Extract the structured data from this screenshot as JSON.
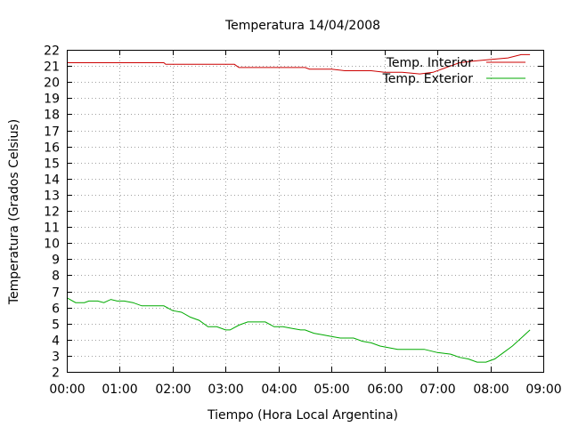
{
  "chart_data": {
    "type": "line",
    "title": "Temperatura 14/04/2008",
    "xlabel": "Tiempo (Hora Local Argentina)",
    "ylabel": "Temperatura (Grados Celsius)",
    "xlim": [
      "00:00",
      "09:00"
    ],
    "ylim": [
      2,
      22
    ],
    "grid": true,
    "legend_position": "top-right",
    "x_tick_labels": [
      "00:00",
      "01:00",
      "02:00",
      "03:00",
      "04:00",
      "05:00",
      "06:00",
      "07:00",
      "08:00",
      "09:00"
    ],
    "y_tick_labels": [
      "2",
      "3",
      "4",
      "5",
      "6",
      "7",
      "8",
      "9",
      "10",
      "11",
      "12",
      "13",
      "14",
      "15",
      "16",
      "17",
      "18",
      "19",
      "20",
      "21",
      "22"
    ],
    "series": [
      {
        "name": "Temp. Interior",
        "color": "#cc0000",
        "points": [
          [
            "00:00",
            21.2
          ],
          [
            "00:30",
            21.2
          ],
          [
            "01:00",
            21.2
          ],
          [
            "01:30",
            21.2
          ],
          [
            "01:50",
            21.2
          ],
          [
            "01:52",
            21.1
          ],
          [
            "02:30",
            21.1
          ],
          [
            "03:10",
            21.1
          ],
          [
            "03:15",
            20.9
          ],
          [
            "04:00",
            20.9
          ],
          [
            "04:30",
            20.9
          ],
          [
            "04:35",
            20.8
          ],
          [
            "05:00",
            20.8
          ],
          [
            "05:15",
            20.7
          ],
          [
            "05:45",
            20.7
          ],
          [
            "06:00",
            20.6
          ],
          [
            "06:20",
            20.6
          ],
          [
            "06:40",
            20.5
          ],
          [
            "06:55",
            20.6
          ],
          [
            "07:10",
            20.9
          ],
          [
            "07:25",
            21.2
          ],
          [
            "07:40",
            21.3
          ],
          [
            "08:00",
            21.4
          ],
          [
            "08:20",
            21.5
          ],
          [
            "08:35",
            21.7
          ],
          [
            "08:45",
            21.7
          ]
        ]
      },
      {
        "name": "Temp. Exterior",
        "color": "#00aa00",
        "points": [
          [
            "00:00",
            6.6
          ],
          [
            "00:10",
            6.3
          ],
          [
            "00:20",
            6.3
          ],
          [
            "00:25",
            6.4
          ],
          [
            "00:35",
            6.4
          ],
          [
            "00:42",
            6.3
          ],
          [
            "00:50",
            6.5
          ],
          [
            "00:57",
            6.4
          ],
          [
            "01:05",
            6.4
          ],
          [
            "01:15",
            6.3
          ],
          [
            "01:25",
            6.1
          ],
          [
            "01:50",
            6.1
          ],
          [
            "02:00",
            5.8
          ],
          [
            "02:10",
            5.7
          ],
          [
            "02:20",
            5.4
          ],
          [
            "02:30",
            5.2
          ],
          [
            "02:40",
            4.8
          ],
          [
            "02:50",
            4.8
          ],
          [
            "03:00",
            4.6
          ],
          [
            "03:05",
            4.6
          ],
          [
            "03:15",
            4.9
          ],
          [
            "03:25",
            5.1
          ],
          [
            "03:45",
            5.1
          ],
          [
            "03:55",
            4.8
          ],
          [
            "04:05",
            4.8
          ],
          [
            "04:15",
            4.7
          ],
          [
            "04:25",
            4.6
          ],
          [
            "04:30",
            4.6
          ],
          [
            "04:40",
            4.4
          ],
          [
            "04:50",
            4.3
          ],
          [
            "05:00",
            4.2
          ],
          [
            "05:10",
            4.1
          ],
          [
            "05:25",
            4.1
          ],
          [
            "05:35",
            3.9
          ],
          [
            "05:45",
            3.8
          ],
          [
            "05:55",
            3.6
          ],
          [
            "06:05",
            3.5
          ],
          [
            "06:15",
            3.4
          ],
          [
            "06:25",
            3.4
          ],
          [
            "06:45",
            3.4
          ],
          [
            "07:00",
            3.2
          ],
          [
            "07:15",
            3.1
          ],
          [
            "07:25",
            2.9
          ],
          [
            "07:35",
            2.8
          ],
          [
            "07:45",
            2.6
          ],
          [
            "07:55",
            2.6
          ],
          [
            "08:05",
            2.8
          ],
          [
            "08:15",
            3.2
          ],
          [
            "08:25",
            3.6
          ],
          [
            "08:35",
            4.1
          ],
          [
            "08:45",
            4.6
          ]
        ]
      }
    ]
  }
}
